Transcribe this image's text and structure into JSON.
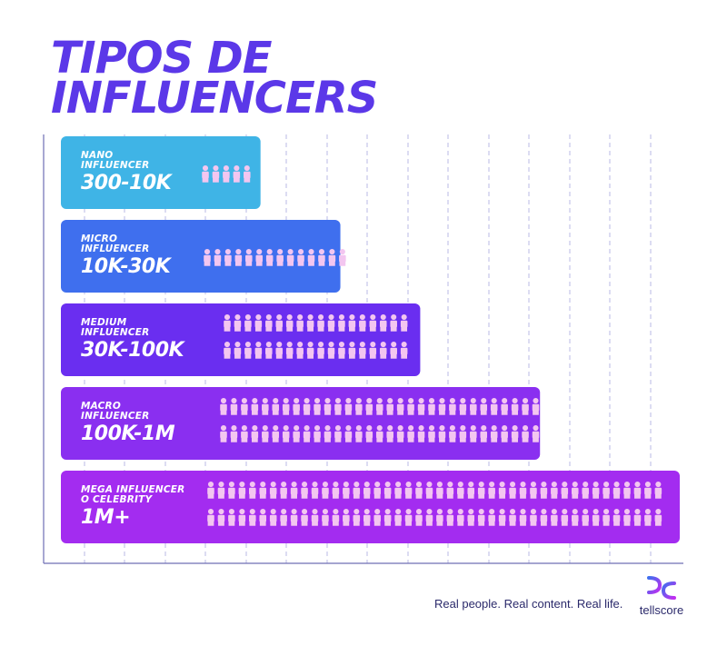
{
  "title_line1": "TIPOS DE",
  "title_line2": "INFLUENCERS",
  "tagline": "Real people. Real content. Real life.",
  "brand_name": "tellscore",
  "colors": {
    "title": "#5b38e8",
    "grid": "#b8b8e6",
    "axis": "#6f6fb3",
    "figure": "#f3c6f0",
    "bars": [
      "#3fb4e6",
      "#3f6fee",
      "#6a2ef0",
      "#8a2ff0",
      "#a32cf0"
    ]
  },
  "chart_data": {
    "type": "bar",
    "orientation": "horizontal",
    "categories": [
      "NANO INFLUENCER",
      "MICRO INFLUENCER",
      "MEDIUM INFLUENCER",
      "MACRO INFLUENCER",
      "MEGA INFLUENCER O CELEBRITY"
    ],
    "labels": [
      "NANO\nINFLUENCER",
      "MICRO\nINFLUENCER",
      "MEDIUM\nINFLUENCER",
      "MACRO\nINFLUENCER",
      "MEGA INFLUENCER\nO CELEBRITY"
    ],
    "ranges": [
      "300-10K",
      "10K-30K",
      "30K-100K",
      "100K-1M",
      "1M+"
    ],
    "values": [
      5,
      7,
      9,
      12,
      15.5
    ],
    "figures": [
      {
        "rows": 1,
        "per_row": 5
      },
      {
        "rows": 1,
        "per_row": 14
      },
      {
        "rows": 2,
        "per_row": 18
      },
      {
        "rows": 2,
        "per_row": 31
      },
      {
        "rows": 2,
        "per_row": 44
      }
    ],
    "grid": true,
    "xlim": [
      0,
      15.5
    ]
  }
}
